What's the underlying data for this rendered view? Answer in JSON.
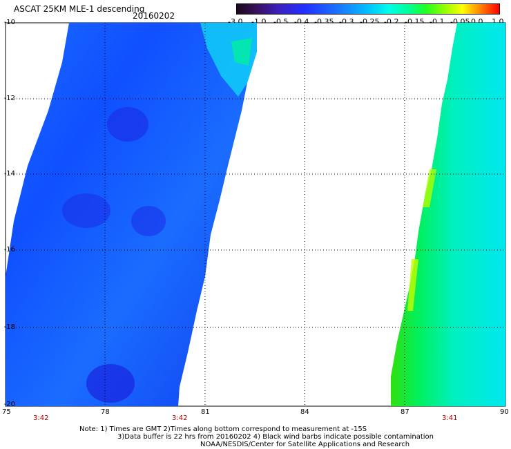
{
  "title": "ASCAT 25KM MLE-1 descending",
  "date": "20160202",
  "colorbar": {
    "ticks": [
      "-3.0",
      "-1.0",
      "-0.5",
      "-0.4",
      "-0.35",
      "-0.3",
      "-0.25",
      "-0.2",
      "-0.15",
      "-0.1",
      "-0.05",
      "0.0",
      "1.0"
    ]
  },
  "axes": {
    "lat_labels": [
      "-10",
      "-12",
      "-14",
      "-16",
      "-18",
      "-20"
    ],
    "lon_labels": [
      "75",
      "78",
      "81",
      "84",
      "87",
      "90"
    ],
    "times": [
      "3:42",
      "3:42",
      "3:41"
    ]
  },
  "notes": {
    "line1": "Note: 1) Times are GMT 2)Times along bottom correspond to measurement at -15S",
    "line2": "3)Data buffer is 22 hrs from 20160202 4) Black wind barbs indicate possible contamination",
    "line3": "NOAA/NESDIS/Center for Satellite Applications and Research"
  },
  "colors": {
    "swath_left": "#1060ff",
    "swath_left_dark": "#1a30f0",
    "swath_right": "#00f0d0",
    "swath_right_edge": "#20e020",
    "grid": "#000000",
    "time_label": "#b00000"
  }
}
